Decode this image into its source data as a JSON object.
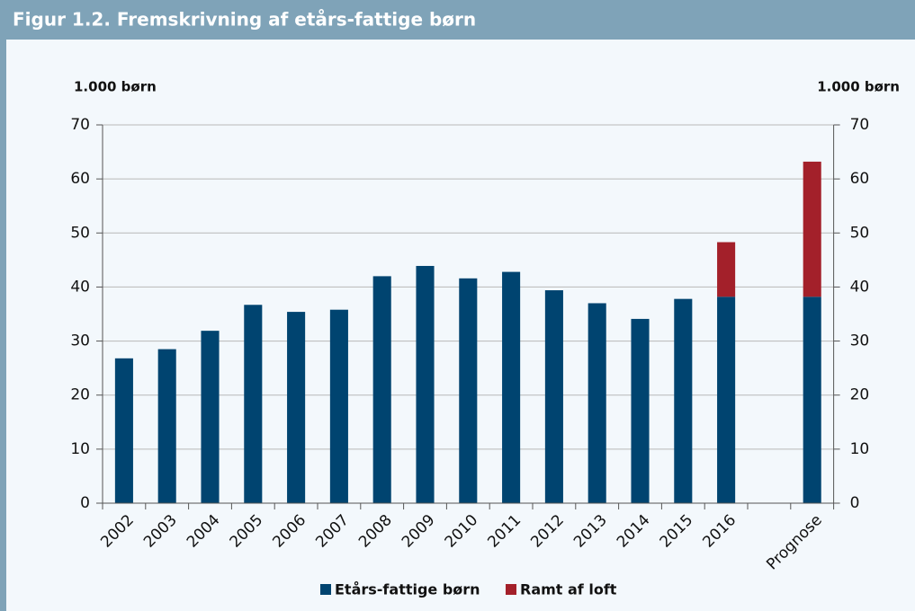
{
  "chart_data": {
    "type": "bar",
    "stacked": true,
    "title": "Figur 1.2. Fremskrivning af etårs-fattige børn",
    "y_label": "1.000 børn",
    "y2_label": "1.000 børn",
    "categories": [
      "2002",
      "2003",
      "2004",
      "2005",
      "2006",
      "2007",
      "2008",
      "2009",
      "2010",
      "2011",
      "2012",
      "2013",
      "2014",
      "2015",
      "2016",
      null,
      "Prognose"
    ],
    "series": [
      {
        "name": "Etårs-fattige børn",
        "color": "#004470",
        "values": [
          26.8,
          28.5,
          31.9,
          36.7,
          35.4,
          35.8,
          42.0,
          43.9,
          41.6,
          42.8,
          39.4,
          37.0,
          34.1,
          37.8,
          38.2,
          null,
          38.2
        ]
      },
      {
        "name": "Ramt af loft",
        "color": "#a3202a",
        "values": [
          null,
          null,
          null,
          null,
          null,
          null,
          null,
          null,
          null,
          null,
          null,
          null,
          null,
          null,
          10.1,
          null,
          25.0
        ]
      }
    ],
    "ylim": [
      0,
      70
    ],
    "yticks": [
      0,
      10,
      20,
      30,
      40,
      50,
      60,
      70
    ],
    "y2lim": [
      0,
      70
    ],
    "y2ticks": [
      0,
      10,
      20,
      30,
      40,
      50,
      60,
      70
    ],
    "grid": true,
    "legend": "bottom"
  }
}
